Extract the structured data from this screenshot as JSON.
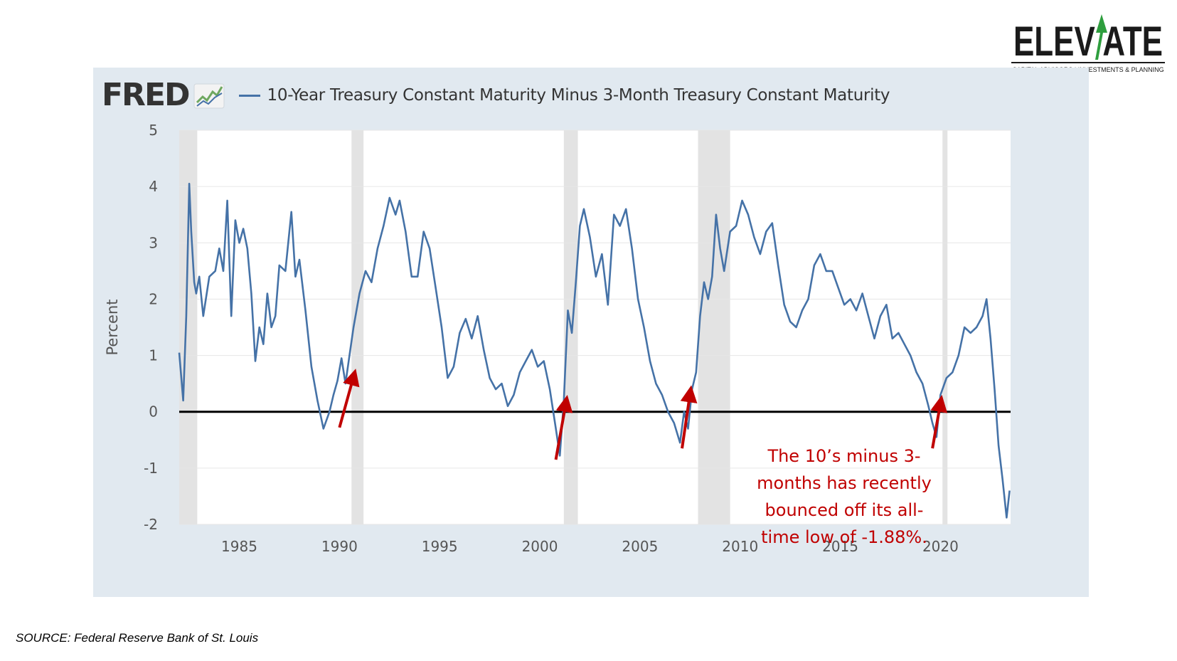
{
  "logo": {
    "word": "ELEVATE",
    "tagline": "CAPITAL ADVISORS | INVESTMENTS & PLANNING"
  },
  "header": {
    "brand": "FRED"
  },
  "source": "SOURCE: Federal Reserve Bank of St. Louis",
  "annotation": "The 10’s minus 3-\nmonths has recently\nbounced off its all-\ntime low of -1.88%.",
  "colors": {
    "series": "#4572a7",
    "recession": "#e3e3e3",
    "arrow": "#c00000",
    "annotation": "#c00000",
    "zero_line": "#000000"
  },
  "chart_data": {
    "type": "line",
    "title": "10-Year Treasury Constant Maturity Minus 3-Month Treasury Constant Maturity",
    "ylabel": "Percent",
    "xlabel": "",
    "xlim": [
      1982.0,
      2023.5
    ],
    "ylim": [
      -2,
      5
    ],
    "y_ticks": [
      "5",
      "4",
      "3",
      "2",
      "1",
      "0",
      "-1",
      "-2"
    ],
    "x_ticks": [
      "1985",
      "1990",
      "1995",
      "2000",
      "2005",
      "2010",
      "2015",
      "2020"
    ],
    "grid": true,
    "recessions": [
      [
        1982.0,
        1982.9
      ],
      [
        1990.6,
        1991.2
      ],
      [
        2001.2,
        2001.9
      ],
      [
        2007.9,
        2009.5
      ],
      [
        2020.1,
        2020.35
      ]
    ],
    "reference_line": 0,
    "arrows": [
      {
        "from": [
          1990.0,
          -0.28
        ],
        "to": [
          1990.7,
          0.62
        ]
      },
      {
        "from": [
          2000.8,
          -0.85
        ],
        "to": [
          2001.3,
          0.15
        ]
      },
      {
        "from": [
          2007.1,
          -0.65
        ],
        "to": [
          2007.5,
          0.32
        ]
      },
      {
        "from": [
          2019.6,
          -0.65
        ],
        "to": [
          2020.0,
          0.15
        ]
      }
    ],
    "series": [
      {
        "name": "10-Year Treasury Constant Maturity Minus 3-Month Treasury Constant Maturity",
        "x": [
          1982.0,
          1982.2,
          1982.35,
          1982.5,
          1982.6,
          1982.75,
          1982.85,
          1983.0,
          1983.2,
          1983.5,
          1983.8,
          1984.0,
          1984.2,
          1984.4,
          1984.6,
          1984.8,
          1985.0,
          1985.2,
          1985.4,
          1985.6,
          1985.8,
          1986.0,
          1986.2,
          1986.4,
          1986.6,
          1986.8,
          1987.0,
          1987.3,
          1987.6,
          1987.8,
          1988.0,
          1988.3,
          1988.6,
          1988.9,
          1989.2,
          1989.5,
          1989.7,
          1989.9,
          1990.1,
          1990.3,
          1990.5,
          1990.7,
          1991.0,
          1991.3,
          1991.6,
          1991.9,
          1992.2,
          1992.5,
          1992.8,
          1993.0,
          1993.3,
          1993.6,
          1993.9,
          1994.2,
          1994.5,
          1994.8,
          1995.1,
          1995.4,
          1995.7,
          1996.0,
          1996.3,
          1996.6,
          1996.9,
          1997.2,
          1997.5,
          1997.8,
          1998.1,
          1998.4,
          1998.7,
          1999.0,
          1999.3,
          1999.6,
          1999.9,
          2000.2,
          2000.5,
          2000.8,
          2001.0,
          2001.2,
          2001.4,
          2001.6,
          2001.8,
          2002.0,
          2002.2,
          2002.5,
          2002.8,
          2003.1,
          2003.4,
          2003.7,
          2004.0,
          2004.3,
          2004.6,
          2004.9,
          2005.2,
          2005.5,
          2005.8,
          2006.1,
          2006.4,
          2006.7,
          2007.0,
          2007.2,
          2007.4,
          2007.6,
          2007.8,
          2008.0,
          2008.2,
          2008.4,
          2008.6,
          2008.8,
          2009.0,
          2009.2,
          2009.5,
          2009.8,
          2010.1,
          2010.4,
          2010.7,
          2011.0,
          2011.3,
          2011.6,
          2011.9,
          2012.2,
          2012.5,
          2012.8,
          2013.1,
          2013.4,
          2013.7,
          2014.0,
          2014.3,
          2014.6,
          2014.9,
          2015.2,
          2015.5,
          2015.8,
          2016.1,
          2016.4,
          2016.7,
          2017.0,
          2017.3,
          2017.6,
          2017.9,
          2018.2,
          2018.5,
          2018.8,
          2019.1,
          2019.4,
          2019.6,
          2019.8,
          2020.0,
          2020.3,
          2020.6,
          2020.9,
          2021.2,
          2021.5,
          2021.8,
          2022.1,
          2022.3,
          2022.5,
          2022.7,
          2022.9,
          2023.1,
          2023.3,
          2023.45
        ],
        "y": [
          1.05,
          0.2,
          1.7,
          4.05,
          3.2,
          2.3,
          2.1,
          2.4,
          1.7,
          2.4,
          2.5,
          2.9,
          2.5,
          3.75,
          1.7,
          3.4,
          3.0,
          3.25,
          2.9,
          2.1,
          0.9,
          1.5,
          1.2,
          2.1,
          1.5,
          1.7,
          2.6,
          2.5,
          3.55,
          2.4,
          2.7,
          1.8,
          0.8,
          0.2,
          -0.3,
          0.0,
          0.3,
          0.55,
          0.95,
          0.5,
          1.0,
          1.5,
          2.1,
          2.5,
          2.3,
          2.9,
          3.3,
          3.8,
          3.5,
          3.75,
          3.2,
          2.4,
          2.4,
          3.2,
          2.9,
          2.2,
          1.5,
          0.6,
          0.8,
          1.4,
          1.65,
          1.3,
          1.7,
          1.1,
          0.6,
          0.4,
          0.5,
          0.1,
          0.3,
          0.7,
          0.9,
          1.1,
          0.8,
          0.9,
          0.4,
          -0.3,
          -0.78,
          0.2,
          1.8,
          1.4,
          2.3,
          3.3,
          3.6,
          3.1,
          2.4,
          2.8,
          1.9,
          3.5,
          3.3,
          3.6,
          2.9,
          2.0,
          1.5,
          0.9,
          0.5,
          0.3,
          0.0,
          -0.2,
          -0.55,
          0.0,
          -0.3,
          0.4,
          0.7,
          1.7,
          2.3,
          2.0,
          2.4,
          3.5,
          2.9,
          2.5,
          3.2,
          3.3,
          3.75,
          3.5,
          3.1,
          2.8,
          3.2,
          3.35,
          2.6,
          1.9,
          1.6,
          1.5,
          1.8,
          2.0,
          2.6,
          2.8,
          2.5,
          2.5,
          2.2,
          1.9,
          2.0,
          1.8,
          2.1,
          1.7,
          1.3,
          1.7,
          1.9,
          1.3,
          1.4,
          1.2,
          1.0,
          0.7,
          0.5,
          0.1,
          -0.2,
          -0.45,
          0.3,
          0.6,
          0.7,
          1.0,
          1.5,
          1.4,
          1.5,
          1.7,
          2.0,
          1.3,
          0.4,
          -0.6,
          -1.2,
          -1.88,
          -1.4
        ]
      }
    ]
  }
}
